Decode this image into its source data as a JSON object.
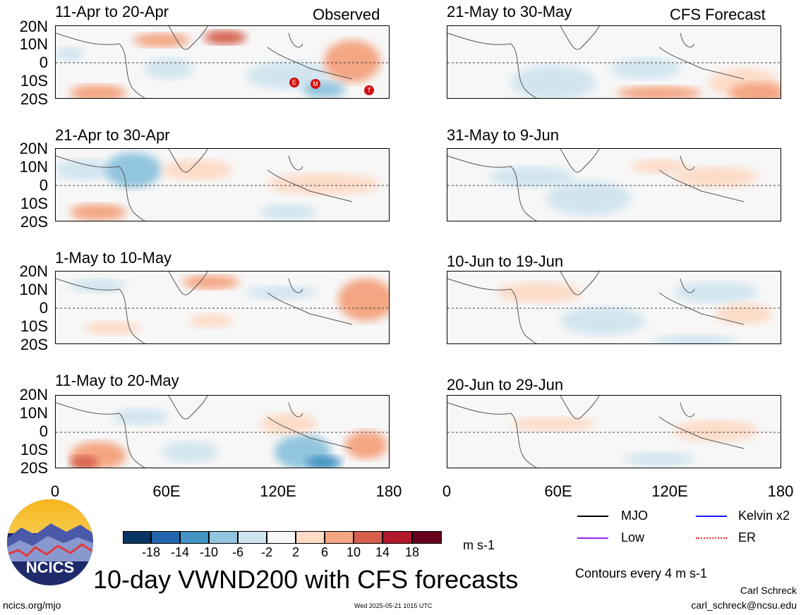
{
  "panels": [
    {
      "date": "11-Apr to 20-Apr",
      "tag": "Observed"
    },
    {
      "date": "21-May to 30-May",
      "tag": "CFS Forecast"
    },
    {
      "date": "21-Apr to 30-Apr",
      "tag": ""
    },
    {
      "date": "31-May to 9-Jun",
      "tag": ""
    },
    {
      "date": "1-May to 10-May",
      "tag": ""
    },
    {
      "date": "10-Jun to 19-Jun",
      "tag": ""
    },
    {
      "date": "11-May to 20-May",
      "tag": ""
    },
    {
      "date": "20-Jun to 29-Jun",
      "tag": ""
    }
  ],
  "lat_labels": [
    "20N",
    "10N",
    "0",
    "10S",
    "20S"
  ],
  "lon_labels": [
    "0",
    "60E",
    "120E",
    "180"
  ],
  "colorbar": {
    "labels": [
      "-18",
      "-14",
      "-10",
      "-6",
      "-2",
      "2",
      "6",
      "10",
      "14",
      "18"
    ],
    "colors": [
      "#083564",
      "#2166ac",
      "#4393c3",
      "#92c5de",
      "#d1e5f0",
      "#f7f7f7",
      "#fddbc7",
      "#f4a582",
      "#d6604d",
      "#b2182b",
      "#67001f"
    ],
    "units": "m s-1"
  },
  "legend": {
    "items": [
      {
        "label": "MJO",
        "color": "#000000"
      },
      {
        "label": "Kelvin x2",
        "color": "#1a1aff"
      },
      {
        "label": "Low",
        "color": "#a020f0"
      },
      {
        "label": "ER",
        "color": "#ff2020"
      }
    ],
    "note": "Contours every 4 m s-1"
  },
  "title": "10-day VWND200 with CFS forecasts",
  "logo_text": "NCICS",
  "footer": {
    "left": "ncics.org/mjo",
    "center": "Wed 2025-05-21 1015 UTC",
    "author": "Carl Schreck",
    "email": "carl_schreck@ncsu.edu"
  },
  "storm_markers": [
    "E",
    "M",
    "T"
  ],
  "chart_data": {
    "type": "heatmap",
    "variable": "VWND200 anomaly",
    "units": "m s-1",
    "x_axis": {
      "ticks": [
        "0",
        "60E",
        "120E",
        "180"
      ],
      "range": [
        0,
        180
      ]
    },
    "y_axis": {
      "ticks": [
        "20N",
        "10N",
        "0",
        "10S",
        "20S"
      ],
      "range": [
        -20,
        20
      ]
    },
    "color_levels": [
      -18,
      -14,
      -10,
      -6,
      -2,
      2,
      6,
      10,
      14,
      18
    ],
    "contour_interval": 4,
    "panels": [
      "11-Apr to 20-Apr",
      "21-Apr to 30-Apr",
      "1-May to 10-May",
      "11-May to 20-May",
      "21-May to 30-May",
      "31-May to 9-Jun",
      "10-Jun to 19-Jun",
      "20-Jun to 29-Jun"
    ]
  }
}
